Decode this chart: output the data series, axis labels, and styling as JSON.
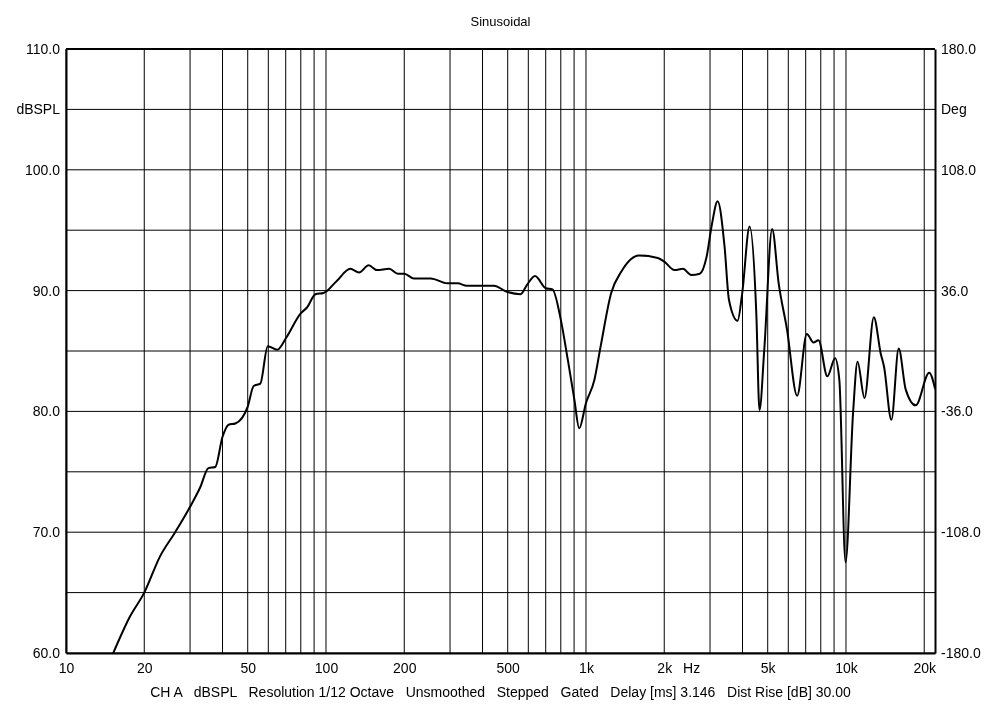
{
  "chart_data": {
    "type": "line",
    "title": "Sinusoidal",
    "xlabel": "Hz",
    "ylabel": "dBSPL",
    "y2label": "Deg",
    "annotations": [
      "CH A   dBSPL   Resolution 1/12 Octave   Unsmoothed   Stepped   Gated   Delay [ms] 3.146   Dist Rise [dB] 30.00"
    ],
    "log": "x",
    "grid": true,
    "marker": "none",
    "line_style": "solid",
    "xlim": [
      10,
      22000
    ],
    "ylim": [
      60,
      110
    ],
    "y2lim": [
      -180,
      180
    ],
    "xticks": [
      10,
      20,
      {
        "value": 30,
        "label": null
      },
      {
        "value": 40,
        "label": null
      },
      50,
      {
        "value": 60,
        "label": null
      },
      {
        "value": 70,
        "label": null
      },
      {
        "value": 80,
        "label": null
      },
      {
        "value": 90,
        "label": null
      },
      100,
      200,
      {
        "value": 300,
        "label": null
      },
      {
        "value": 400,
        "label": null
      },
      500,
      {
        "value": 600,
        "label": null
      },
      {
        "value": 700,
        "label": null
      },
      {
        "value": 800,
        "label": null
      },
      {
        "value": 900,
        "label": null
      },
      {
        "value": 1000,
        "label": "1k"
      },
      {
        "value": 2000,
        "label": "2k"
      },
      {
        "value": 3000,
        "label": null
      },
      {
        "value": 4000,
        "label": null
      },
      {
        "value": 5000,
        "label": "5k"
      },
      {
        "value": 6000,
        "label": null
      },
      {
        "value": 7000,
        "label": null
      },
      {
        "value": 8000,
        "label": null
      },
      {
        "value": 9000,
        "label": null
      },
      {
        "value": 10000,
        "label": "10k"
      },
      {
        "value": 20000,
        "label": "20k"
      }
    ],
    "yticks": [
      {
        "value": 60,
        "label": "60.0"
      },
      {
        "value": 65,
        "label": null
      },
      {
        "value": 70,
        "label": "70.0"
      },
      {
        "value": 75,
        "label": null
      },
      {
        "value": 80,
        "label": "80.0"
      },
      {
        "value": 85,
        "label": null
      },
      {
        "value": 90,
        "label": "90.0"
      },
      {
        "value": 95,
        "label": null
      },
      {
        "value": 100,
        "label": "100.0"
      },
      {
        "value": 105,
        "label": null
      },
      {
        "value": 110,
        "label": "110.0"
      }
    ],
    "y2ticks": [
      {
        "value": -180,
        "label": "-180.0"
      },
      {
        "value": -108,
        "label": "-108.0"
      },
      {
        "value": -36,
        "label": "-36.0"
      },
      {
        "value": 36,
        "label": "36.0"
      },
      {
        "value": 108,
        "label": "108.0"
      },
      {
        "value": 180,
        "label": "180.0"
      }
    ],
    "series": [
      {
        "color": "#000000",
        "x": [
          15.2,
          17.6,
          20,
          23,
          26.3,
          30,
          32.8,
          35.3,
          37.5,
          40,
          42.2,
          44.8,
          50,
          52.7,
          55.9,
          59.7,
          64.9,
          70.3,
          79.8,
          84.5,
          91.1,
          97.9,
          110,
          124,
          134,
          146,
          157,
          175,
          189,
          200,
          218,
          253,
          293,
          321,
          348,
          392,
          442,
          497,
          560,
          594,
          637,
          700,
          743,
          800,
          851,
          902,
          942,
          1000,
          1077,
          1139,
          1250,
          1370,
          1600,
          1890,
          2000,
          2190,
          2360,
          2540,
          2740,
          2910,
          3040,
          3210,
          3410,
          3550,
          3830,
          3990,
          4260,
          4520,
          4650,
          4850,
          5200,
          5510,
          5930,
          6490,
          7070,
          7500,
          7840,
          8480,
          9080,
          9430,
          9960,
          10650,
          11080,
          11780,
          12800,
          13600,
          14010,
          14950,
          15950,
          16980,
          18550,
          20900,
          22000
        ],
        "values": [
          60,
          63,
          65,
          68,
          70,
          72.1,
          73.7,
          75.3,
          75.4,
          77.9,
          78.9,
          79,
          80.4,
          82.1,
          82.3,
          85.4,
          85.1,
          86.1,
          88.1,
          88.6,
          89.7,
          89.8,
          90.8,
          91.8,
          91.5,
          92.1,
          91.7,
          91.8,
          91.4,
          91.4,
          91,
          91,
          90.6,
          90.6,
          90.4,
          90.4,
          90.4,
          89.9,
          89.7,
          90.5,
          91.2,
          90.2,
          90.1,
          87.6,
          84.3,
          81,
          78.6,
          80.7,
          82.6,
          85.4,
          89.8,
          91.6,
          92.9,
          92.7,
          92.4,
          91.7,
          91.8,
          91.3,
          91.4,
          92.8,
          95.3,
          97.4,
          93.7,
          89.2,
          87.5,
          89.8,
          95.3,
          88.1,
          80.1,
          85.1,
          95.1,
          90.6,
          86.8,
          81.3,
          86.4,
          85.7,
          85.9,
          82.9,
          84.4,
          82.6,
          67.5,
          79.9,
          84.1,
          81.1,
          87.8,
          84.8,
          83.7,
          79.3,
          85.2,
          81.8,
          80.5,
          83.2,
          81.9
        ]
      }
    ]
  }
}
